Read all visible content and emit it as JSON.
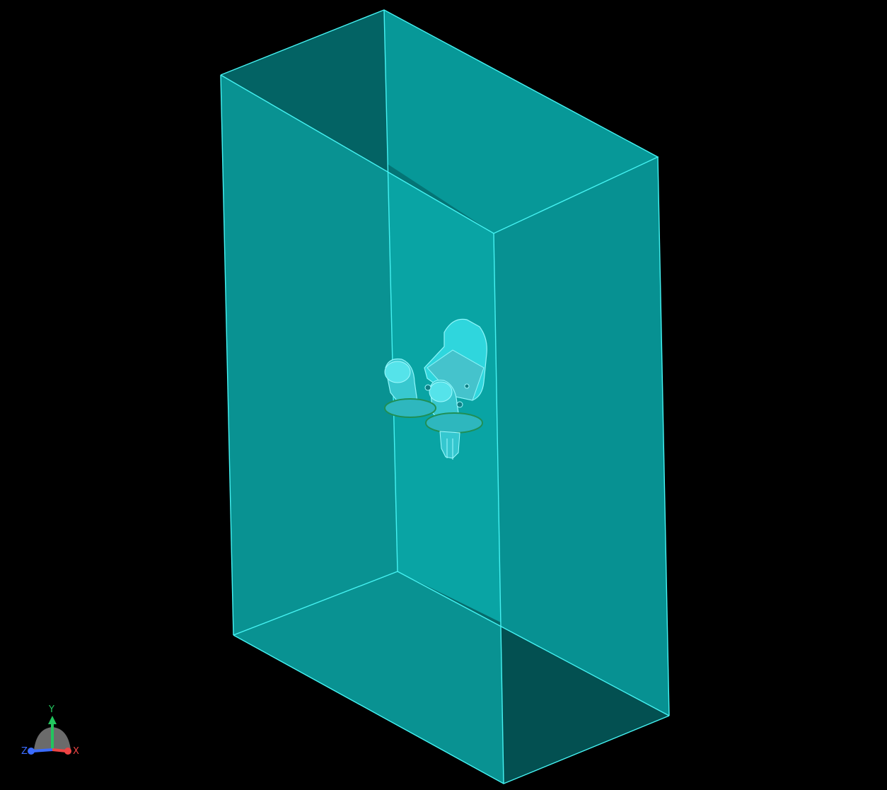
{
  "viewport": {
    "background": "#000000"
  },
  "enclosure": {
    "face_color": "#0a9c9c",
    "back_face_color": "#0a7f80",
    "dark_face_color": "#035454",
    "edge_color": "#3ff0f0"
  },
  "model": {
    "body_color": "#31c6cf",
    "highlight_color": "#6ef2f7",
    "trim_color": "#1f8f55"
  },
  "axis_triad": {
    "labels": {
      "y": "Y",
      "x": "X",
      "z": "Z"
    },
    "colors": {
      "y": "#22c55e",
      "x": "#ef4444",
      "z": "#3b6cff",
      "base": "#6b6b6b"
    }
  }
}
